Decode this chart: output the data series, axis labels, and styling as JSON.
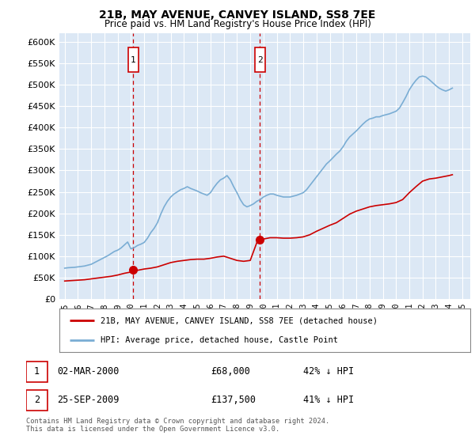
{
  "title": "21B, MAY AVENUE, CANVEY ISLAND, SS8 7EE",
  "subtitle": "Price paid vs. HM Land Registry's House Price Index (HPI)",
  "ylim": [
    0,
    620000
  ],
  "yticks": [
    0,
    50000,
    100000,
    150000,
    200000,
    250000,
    300000,
    350000,
    400000,
    450000,
    500000,
    550000,
    600000
  ],
  "ytick_labels": [
    "£0",
    "£50K",
    "£100K",
    "£150K",
    "£200K",
    "£250K",
    "£300K",
    "£350K",
    "£400K",
    "£450K",
    "£500K",
    "£550K",
    "£600K"
  ],
  "xlim_start": 1994.6,
  "xlim_end": 2025.6,
  "xticks": [
    1995,
    1996,
    1997,
    1998,
    1999,
    2000,
    2001,
    2002,
    2003,
    2004,
    2005,
    2006,
    2007,
    2008,
    2009,
    2010,
    2011,
    2012,
    2013,
    2014,
    2015,
    2016,
    2017,
    2018,
    2019,
    2020,
    2021,
    2022,
    2023,
    2024,
    2025
  ],
  "background_color": "#ffffff",
  "plot_bg_color": "#dce8f5",
  "grid_color": "#ffffff",
  "red_line_color": "#cc0000",
  "blue_line_color": "#7aadd4",
  "marker_color": "#cc0000",
  "vline_color": "#cc0000",
  "marker1_x": 2000.17,
  "marker1_y": 68000,
  "marker2_x": 2009.73,
  "marker2_y": 137500,
  "transaction1_date": "02-MAR-2000",
  "transaction1_price": "£68,000",
  "transaction1_hpi": "42% ↓ HPI",
  "transaction2_date": "25-SEP-2009",
  "transaction2_price": "£137,500",
  "transaction2_hpi": "41% ↓ HPI",
  "legend_line1": "21B, MAY AVENUE, CANVEY ISLAND, SS8 7EE (detached house)",
  "legend_line2": "HPI: Average price, detached house, Castle Point",
  "footer": "Contains HM Land Registry data © Crown copyright and database right 2024.\nThis data is licensed under the Open Government Licence v3.0.",
  "hpi_x": [
    1995.0,
    1995.25,
    1995.5,
    1995.75,
    1996.0,
    1996.25,
    1996.5,
    1996.75,
    1997.0,
    1997.25,
    1997.5,
    1997.75,
    1998.0,
    1998.25,
    1998.5,
    1998.75,
    1999.0,
    1999.25,
    1999.5,
    1999.75,
    2000.0,
    2000.25,
    2000.5,
    2000.75,
    2001.0,
    2001.25,
    2001.5,
    2001.75,
    2002.0,
    2002.25,
    2002.5,
    2002.75,
    2003.0,
    2003.25,
    2003.5,
    2003.75,
    2004.0,
    2004.25,
    2004.5,
    2004.75,
    2005.0,
    2005.25,
    2005.5,
    2005.75,
    2006.0,
    2006.25,
    2006.5,
    2006.75,
    2007.0,
    2007.25,
    2007.5,
    2007.75,
    2008.0,
    2008.25,
    2008.5,
    2008.75,
    2009.0,
    2009.25,
    2009.5,
    2009.75,
    2010.0,
    2010.25,
    2010.5,
    2010.75,
    2011.0,
    2011.25,
    2011.5,
    2011.75,
    2012.0,
    2012.25,
    2012.5,
    2012.75,
    2013.0,
    2013.25,
    2013.5,
    2013.75,
    2014.0,
    2014.25,
    2014.5,
    2014.75,
    2015.0,
    2015.25,
    2015.5,
    2015.75,
    2016.0,
    2016.25,
    2016.5,
    2016.75,
    2017.0,
    2017.25,
    2017.5,
    2017.75,
    2018.0,
    2018.25,
    2018.5,
    2018.75,
    2019.0,
    2019.25,
    2019.5,
    2019.75,
    2020.0,
    2020.25,
    2020.5,
    2020.75,
    2021.0,
    2021.25,
    2021.5,
    2021.75,
    2022.0,
    2022.25,
    2022.5,
    2022.75,
    2023.0,
    2023.25,
    2023.5,
    2023.75,
    2024.0,
    2024.25
  ],
  "hpi_y": [
    72000,
    73000,
    73500,
    74000,
    75000,
    76000,
    77000,
    79000,
    81000,
    85000,
    89000,
    93000,
    97000,
    101000,
    106000,
    111000,
    114000,
    119000,
    126000,
    133000,
    117000,
    120000,
    125000,
    128000,
    132000,
    142000,
    155000,
    165000,
    178000,
    198000,
    215000,
    228000,
    238000,
    245000,
    250000,
    255000,
    258000,
    262000,
    258000,
    255000,
    252000,
    248000,
    245000,
    242000,
    248000,
    260000,
    270000,
    278000,
    282000,
    288000,
    278000,
    262000,
    248000,
    232000,
    220000,
    215000,
    218000,
    222000,
    228000,
    232000,
    238000,
    242000,
    245000,
    245000,
    242000,
    240000,
    238000,
    238000,
    238000,
    240000,
    242000,
    245000,
    248000,
    255000,
    265000,
    275000,
    285000,
    295000,
    305000,
    315000,
    322000,
    330000,
    338000,
    345000,
    355000,
    368000,
    378000,
    385000,
    392000,
    400000,
    408000,
    415000,
    420000,
    422000,
    425000,
    425000,
    428000,
    430000,
    432000,
    435000,
    438000,
    445000,
    458000,
    472000,
    488000,
    500000,
    510000,
    518000,
    520000,
    518000,
    512000,
    505000,
    498000,
    492000,
    488000,
    485000,
    488000,
    492000
  ],
  "red_x": [
    1995.0,
    1995.5,
    1996.0,
    1996.5,
    1997.0,
    1997.5,
    1998.0,
    1998.5,
    1999.0,
    1999.5,
    2000.0,
    2000.17,
    2000.5,
    2001.0,
    2001.5,
    2002.0,
    2002.5,
    2003.0,
    2003.5,
    2004.0,
    2004.5,
    2005.0,
    2005.5,
    2006.0,
    2006.5,
    2007.0,
    2007.5,
    2008.0,
    2008.5,
    2009.0,
    2009.5,
    2009.73,
    2010.0,
    2010.5,
    2011.0,
    2011.5,
    2012.0,
    2012.5,
    2013.0,
    2013.5,
    2014.0,
    2014.5,
    2015.0,
    2015.5,
    2016.0,
    2016.5,
    2017.0,
    2017.5,
    2018.0,
    2018.5,
    2019.0,
    2019.5,
    2020.0,
    2020.5,
    2021.0,
    2021.5,
    2022.0,
    2022.5,
    2023.0,
    2023.5,
    2024.0,
    2024.25
  ],
  "red_y": [
    42000,
    43000,
    44000,
    45000,
    47000,
    49000,
    51000,
    53000,
    56000,
    60000,
    63000,
    68000,
    67000,
    70000,
    72000,
    75000,
    80000,
    85000,
    88000,
    90000,
    92000,
    93000,
    93000,
    95000,
    98000,
    100000,
    95000,
    90000,
    88000,
    90000,
    132000,
    137500,
    140000,
    143000,
    143000,
    142000,
    142000,
    143000,
    145000,
    150000,
    158000,
    165000,
    172000,
    178000,
    188000,
    198000,
    205000,
    210000,
    215000,
    218000,
    220000,
    222000,
    225000,
    232000,
    248000,
    262000,
    275000,
    280000,
    282000,
    285000,
    288000,
    290000
  ]
}
